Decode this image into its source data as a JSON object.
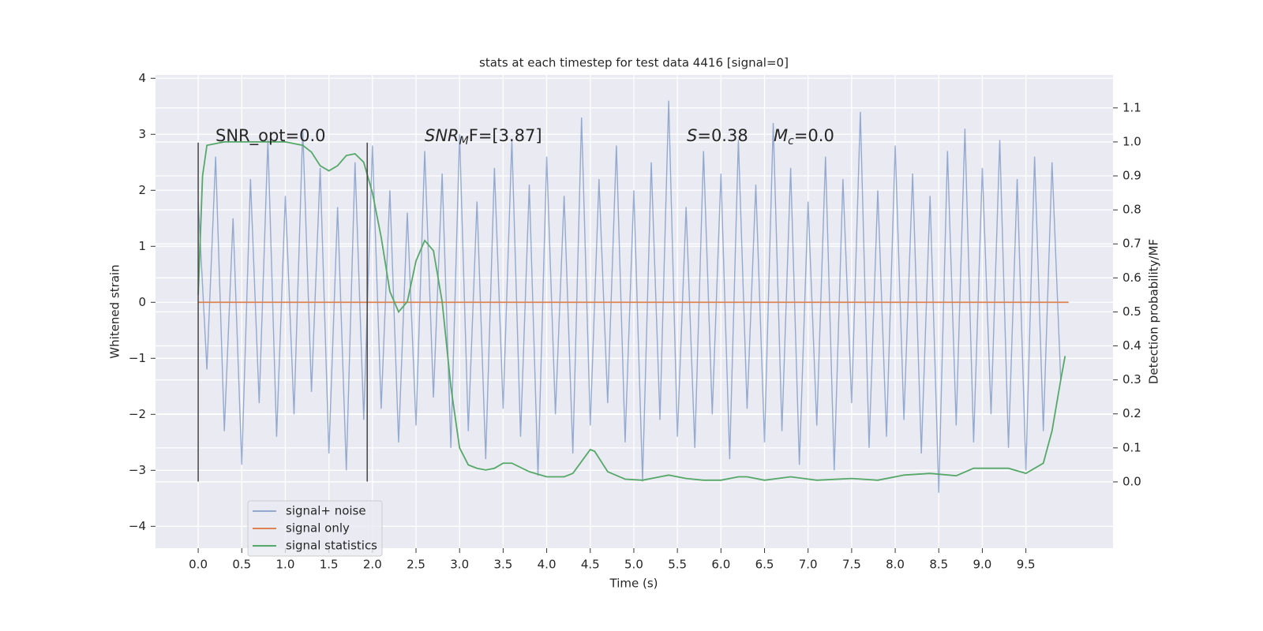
{
  "chart_data": {
    "type": "line",
    "title": "stats at each timestep for test data 4416 [signal=0]",
    "xlabel": "Time (s)",
    "ylabel": "Whitened strain",
    "y2label": "Detection probability/MF",
    "xlim": [
      -0.49,
      10.5
    ],
    "ylim": [
      -4.39,
      4.06
    ],
    "y2lim": [
      -0.195,
      1.197
    ],
    "xticks": [
      {
        "value": 0,
        "label": "0.0"
      },
      {
        "value": 0.5,
        "label": "0.5"
      },
      {
        "value": 1,
        "label": "1.0"
      },
      {
        "value": 1.5,
        "label": "1.5"
      },
      {
        "value": 2,
        "label": "2.0"
      },
      {
        "value": 2.5,
        "label": "2.5"
      },
      {
        "value": 3,
        "label": "3.0"
      },
      {
        "value": 3.5,
        "label": "3.5"
      },
      {
        "value": 4,
        "label": "4.0"
      },
      {
        "value": 4.5,
        "label": "4.5"
      },
      {
        "value": 5,
        "label": "5.0"
      },
      {
        "value": 5.5,
        "label": "5.5"
      },
      {
        "value": 6,
        "label": "6.0"
      },
      {
        "value": 6.5,
        "label": "6.5"
      },
      {
        "value": 7,
        "label": "7.0"
      },
      {
        "value": 7.5,
        "label": "7.5"
      },
      {
        "value": 8,
        "label": "8.0"
      },
      {
        "value": 8.5,
        "label": "8.5"
      },
      {
        "value": 9,
        "label": "9.0"
      },
      {
        "value": 9.5,
        "label": "9.5"
      }
    ],
    "yticks": [
      {
        "value": -4,
        "label": "−4"
      },
      {
        "value": -3,
        "label": "−3"
      },
      {
        "value": -2,
        "label": "−2"
      },
      {
        "value": -1,
        "label": "−1"
      },
      0,
      1,
      2,
      3,
      4
    ],
    "y2ticks": [
      {
        "value": 0,
        "label": "0.0"
      },
      {
        "value": 0.1,
        "label": "0.1"
      },
      {
        "value": 0.2,
        "label": "0.2"
      },
      {
        "value": 0.3,
        "label": "0.3"
      },
      {
        "value": 0.4,
        "label": "0.4"
      },
      {
        "value": 0.5,
        "label": "0.5"
      },
      {
        "value": 0.6,
        "label": "0.6"
      },
      {
        "value": 0.7,
        "label": "0.7"
      },
      {
        "value": 0.8,
        "label": "0.8"
      },
      {
        "value": 0.9,
        "label": "0.9"
      },
      {
        "value": 1,
        "label": "1.0"
      },
      {
        "value": 1.1,
        "label": "1.1"
      }
    ],
    "grid": true,
    "legend": "lower left",
    "series": [
      {
        "name": "signal+ noise",
        "color": "#4c72b0",
        "x": [
          0,
          0.1,
          0.2,
          0.3,
          0.4,
          0.5,
          0.6,
          0.7,
          0.8,
          0.9,
          1,
          1.1,
          1.2,
          1.3,
          1.4,
          1.5,
          1.6,
          1.7,
          1.8,
          1.9,
          2,
          2.1,
          2.2,
          2.3,
          2.4,
          2.5,
          2.6,
          2.7,
          2.8,
          2.9,
          3,
          3.1,
          3.2,
          3.3,
          3.4,
          3.5,
          3.6,
          3.7,
          3.8,
          3.9,
          4,
          4.1,
          4.2,
          4.3,
          4.4,
          4.5,
          4.6,
          4.7,
          4.8,
          4.9,
          5,
          5.1,
          5.2,
          5.3,
          5.4,
          5.5,
          5.6,
          5.7,
          5.8,
          5.9,
          6,
          6.1,
          6.2,
          6.3,
          6.4,
          6.5,
          6.6,
          6.7,
          6.8,
          6.9,
          7,
          7.1,
          7.2,
          7.3,
          7.4,
          7.5,
          7.6,
          7.7,
          7.8,
          7.9,
          8,
          8.1,
          8.2,
          8.3,
          8.4,
          8.5,
          8.6,
          8.7,
          8.8,
          8.9,
          9,
          9.1,
          9.2,
          9.3,
          9.4,
          9.5,
          9.6,
          9.7,
          9.8,
          9.9
        ],
        "values": [
          1.8,
          -1.2,
          2.6,
          -2.3,
          1.5,
          -2.9,
          2.2,
          -1.8,
          2.9,
          -2.4,
          1.9,
          -2.0,
          3.1,
          -1.6,
          2.4,
          -2.7,
          1.7,
          -3.0,
          2.5,
          -2.1,
          2.8,
          -1.9,
          2.0,
          -2.5,
          1.6,
          -2.2,
          2.7,
          -1.7,
          2.3,
          -2.6,
          3.0,
          -2.3,
          1.8,
          -2.8,
          2.4,
          -1.9,
          2.9,
          -2.4,
          2.1,
          -3.1,
          2.6,
          -2.0,
          1.9,
          -2.7,
          3.3,
          -2.2,
          2.2,
          -1.8,
          2.8,
          -2.5,
          2.0,
          -3.2,
          2.5,
          -2.1,
          3.6,
          -2.4,
          1.7,
          -2.6,
          2.7,
          -2.0,
          2.3,
          -2.8,
          2.9,
          -1.9,
          2.1,
          -2.5,
          3.2,
          -2.3,
          2.4,
          -2.9,
          1.8,
          -2.2,
          2.6,
          -3.0,
          2.2,
          -1.8,
          3.4,
          -2.6,
          2.0,
          -2.4,
          2.8,
          -2.1,
          2.3,
          -2.7,
          1.9,
          -3.4,
          2.7,
          -2.2,
          3.1,
          -2.5,
          2.4,
          -2.0,
          2.9,
          -2.6,
          2.2,
          -3.0,
          2.6,
          -2.3,
          2.5,
          -1.4
        ]
      },
      {
        "name": "signal only",
        "color": "#dd8452",
        "x": [
          0,
          9.99
        ],
        "values": [
          0,
          0
        ]
      },
      {
        "name": "signal statistics",
        "color": "#55a868",
        "axis": "y2",
        "x": [
          0,
          0.05,
          0.1,
          0.3,
          0.5,
          1.0,
          1.2,
          1.3,
          1.4,
          1.5,
          1.6,
          1.7,
          1.8,
          1.9,
          2.0,
          2.1,
          2.2,
          2.3,
          2.4,
          2.5,
          2.6,
          2.7,
          2.8,
          2.9,
          3.0,
          3.1,
          3.2,
          3.3,
          3.4,
          3.5,
          3.6,
          3.8,
          4.0,
          4.2,
          4.3,
          4.4,
          4.5,
          4.55,
          4.7,
          4.9,
          5.1,
          5.3,
          5.4,
          5.6,
          5.8,
          6.0,
          6.2,
          6.3,
          6.5,
          6.8,
          7.1,
          7.5,
          7.8,
          8.1,
          8.4,
          8.7,
          8.9,
          9.1,
          9.3,
          9.5,
          9.7,
          9.8,
          9.9,
          9.95
        ],
        "values": [
          0.55,
          0.9,
          0.99,
          1.0,
          1.0,
          1.0,
          0.99,
          0.97,
          0.93,
          0.915,
          0.93,
          0.96,
          0.965,
          0.94,
          0.85,
          0.72,
          0.56,
          0.5,
          0.53,
          0.65,
          0.71,
          0.68,
          0.53,
          0.28,
          0.1,
          0.05,
          0.04,
          0.035,
          0.04,
          0.055,
          0.055,
          0.03,
          0.015,
          0.015,
          0.025,
          0.06,
          0.095,
          0.09,
          0.03,
          0.008,
          0.005,
          0.015,
          0.02,
          0.01,
          0.005,
          0.005,
          0.015,
          0.015,
          0.005,
          0.015,
          0.005,
          0.01,
          0.005,
          0.02,
          0.025,
          0.018,
          0.04,
          0.04,
          0.04,
          0.025,
          0.055,
          0.15,
          0.3,
          0.37
        ]
      }
    ],
    "vlines": {
      "x": [
        0,
        1.94
      ],
      "ymin": -3.2,
      "ymax": 2.85,
      "color": "#444444"
    },
    "annotations": [
      [
        {
          "text": "SNR_opt=0.0",
          "style": "normal"
        }
      ],
      [
        {
          "text": "SNR",
          "style": "italic"
        },
        {
          "text": "M",
          "style": "sub"
        },
        {
          "text": "F=[3.87]",
          "style": "normal"
        }
      ],
      [
        {
          "text": "S",
          "style": "italic"
        },
        {
          "text": "=0.38",
          "style": "normal"
        }
      ],
      [
        {
          "text": "M",
          "style": "italic"
        },
        {
          "text": "c",
          "style": "sub"
        },
        {
          "text": "=0.0",
          "style": "normal"
        }
      ]
    ]
  }
}
